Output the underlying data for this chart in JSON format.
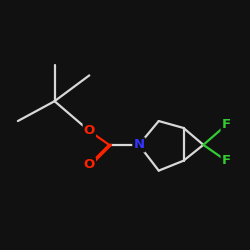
{
  "background_color": "#111111",
  "bond_color": "#d8d8d8",
  "N_color": "#3333ff",
  "O_color": "#ff2200",
  "F_color": "#33cc33",
  "N_label": "N",
  "O_label": "O",
  "F_label": "F",
  "figsize": [
    2.5,
    2.5
  ],
  "dpi": 100,
  "bond_lw": 1.6
}
